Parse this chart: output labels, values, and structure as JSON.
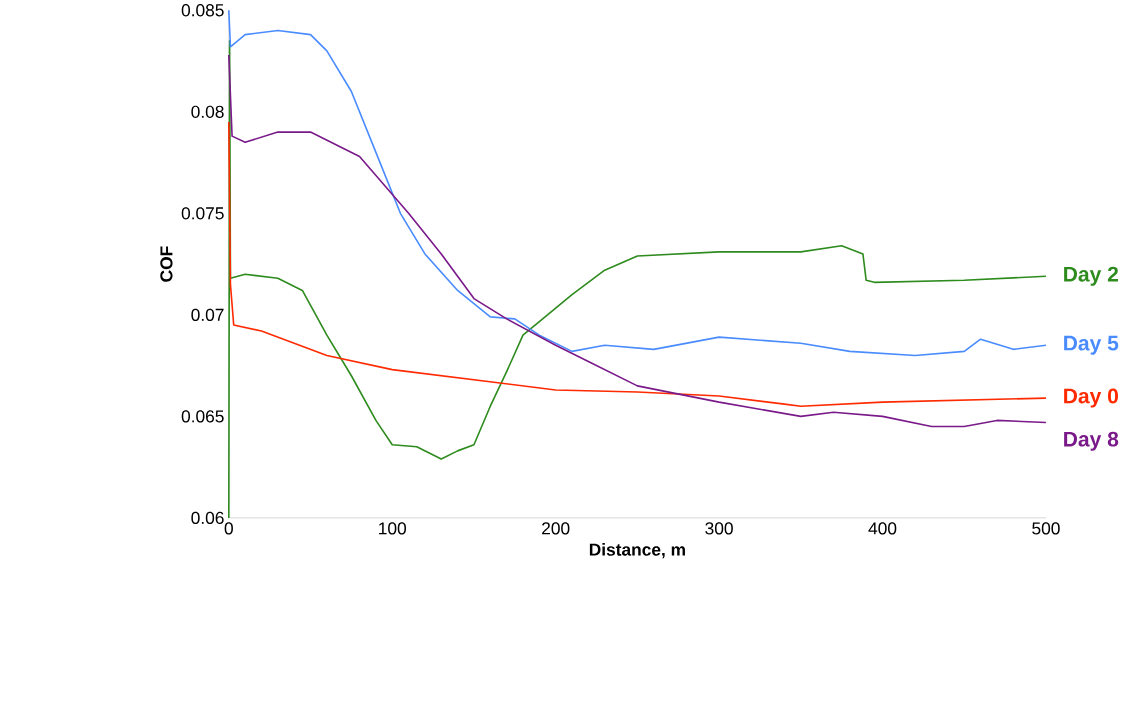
{
  "chart_data": {
    "type": "line",
    "xlabel": "Distance, m",
    "ylabel": "COF",
    "xlim": [
      0,
      500
    ],
    "ylim": [
      0.06,
      0.085
    ],
    "xticks": [
      0,
      100,
      200,
      300,
      400,
      500
    ],
    "yticks": [
      0.06,
      0.065,
      0.07,
      0.075,
      0.08,
      0.085
    ],
    "grid": false,
    "legend": false,
    "marker": "none",
    "line_style": "solid",
    "series": [
      {
        "name": "Day 2",
        "color": "#2e8b1e",
        "x": [
          0,
          0.5,
          1,
          10,
          30,
          45,
          60,
          75,
          90,
          100,
          115,
          130,
          140,
          150,
          160,
          170,
          180,
          195,
          210,
          230,
          250,
          300,
          350,
          375,
          388,
          390,
          395,
          450,
          500
        ],
        "values": [
          0.06,
          0.0835,
          0.0718,
          0.072,
          0.0718,
          0.0712,
          0.069,
          0.067,
          0.0648,
          0.0636,
          0.0635,
          0.0629,
          0.0633,
          0.0636,
          0.0655,
          0.0672,
          0.069,
          0.07,
          0.071,
          0.0722,
          0.0729,
          0.0731,
          0.0731,
          0.0734,
          0.073,
          0.0717,
          0.0716,
          0.0717,
          0.0719
        ]
      },
      {
        "name": "Day 5",
        "color": "#4a8cff",
        "x": [
          0,
          1,
          10,
          30,
          50,
          60,
          75,
          90,
          105,
          120,
          140,
          160,
          175,
          190,
          210,
          230,
          260,
          300,
          350,
          380,
          420,
          450,
          460,
          480,
          500
        ],
        "values": [
          0.085,
          0.0832,
          0.0838,
          0.084,
          0.0838,
          0.083,
          0.081,
          0.078,
          0.075,
          0.073,
          0.0712,
          0.0699,
          0.0698,
          0.069,
          0.0682,
          0.0685,
          0.0683,
          0.0689,
          0.0686,
          0.0682,
          0.068,
          0.0682,
          0.0688,
          0.0683,
          0.0685
        ]
      },
      {
        "name": "Day 0",
        "color": "#ff2a00",
        "x": [
          0,
          1,
          3,
          20,
          60,
          100,
          150,
          200,
          250,
          300,
          340,
          350,
          400,
          500
        ],
        "values": [
          0.0795,
          0.0715,
          0.0695,
          0.0692,
          0.068,
          0.0673,
          0.0668,
          0.0663,
          0.0662,
          0.066,
          0.0656,
          0.0655,
          0.0657,
          0.0659
        ]
      },
      {
        "name": "Day 8",
        "color": "#7a1a8a",
        "x": [
          0,
          2,
          10,
          30,
          50,
          80,
          110,
          130,
          150,
          170,
          200,
          220,
          250,
          300,
          350,
          370,
          400,
          430,
          450,
          470,
          500
        ],
        "values": [
          0.0828,
          0.0788,
          0.0785,
          0.079,
          0.079,
          0.0778,
          0.075,
          0.073,
          0.0708,
          0.0698,
          0.0685,
          0.0677,
          0.0665,
          0.0657,
          0.065,
          0.0652,
          0.065,
          0.0645,
          0.0645,
          0.0648,
          0.0647
        ]
      }
    ]
  }
}
